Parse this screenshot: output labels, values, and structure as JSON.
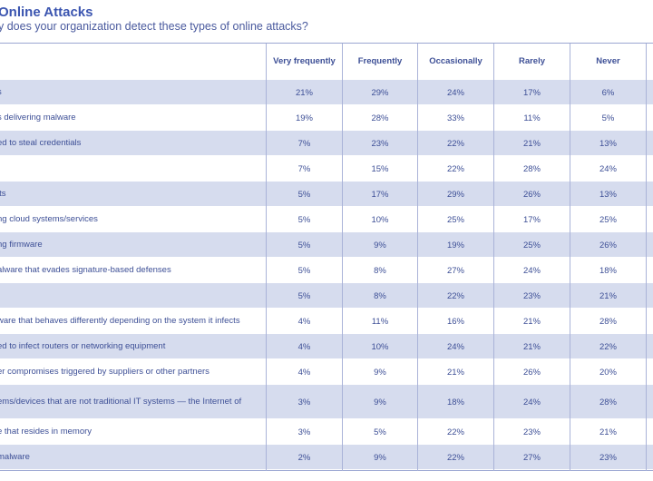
{
  "page": {
    "title": "Online Attacks",
    "subtitle": "y does your organization detect these types of online attacks?"
  },
  "table": {
    "columns": [
      "Very frequently",
      "Frequently",
      "Occasionally",
      "Rarely",
      "Never"
    ],
    "rows": [
      {
        "label": "s",
        "values": [
          "21%",
          "29%",
          "24%",
          "17%",
          "6%"
        ],
        "shaded": true
      },
      {
        "label": "s delivering malware",
        "values": [
          "19%",
          "28%",
          "33%",
          "11%",
          "5%"
        ],
        "shaded": false
      },
      {
        "label": "ed to steal credentials",
        "values": [
          "7%",
          "23%",
          "22%",
          "21%",
          "13%"
        ],
        "shaded": true
      },
      {
        "label": "",
        "values": [
          "7%",
          "15%",
          "22%",
          "28%",
          "24%"
        ],
        "shaded": false
      },
      {
        "label": "its",
        "values": [
          "5%",
          "17%",
          "29%",
          "26%",
          "13%"
        ],
        "shaded": true
      },
      {
        "label": "ng cloud systems/services",
        "values": [
          "5%",
          "10%",
          "25%",
          "17%",
          "25%"
        ],
        "shaded": false
      },
      {
        "label": "ng firmware",
        "values": [
          "5%",
          "9%",
          "19%",
          "25%",
          "26%"
        ],
        "shaded": true
      },
      {
        "label": "alware that evades signature-based defenses",
        "values": [
          "5%",
          "8%",
          "27%",
          "24%",
          "18%"
        ],
        "shaded": false
      },
      {
        "label": "",
        "values": [
          "5%",
          "8%",
          "22%",
          "23%",
          "21%"
        ],
        "shaded": true
      },
      {
        "label": "ware that behaves differently depending on the system it infects",
        "values": [
          "4%",
          "11%",
          "16%",
          "21%",
          "28%"
        ],
        "shaded": false
      },
      {
        "label": "ed to infect routers or networking equipment",
        "values": [
          "4%",
          "10%",
          "24%",
          "21%",
          "22%"
        ],
        "shaded": true
      },
      {
        "label": "er compromises triggered by suppliers or other partners",
        "values": [
          "4%",
          "9%",
          "21%",
          "26%",
          "20%"
        ],
        "shaded": false
      },
      {
        "label": "ems/devices that are not traditional IT systems — the Internet of",
        "values": [
          "3%",
          "9%",
          "18%",
          "24%",
          "28%"
        ],
        "shaded": true
      },
      {
        "label": "e that resides in memory",
        "values": [
          "3%",
          "5%",
          "22%",
          "23%",
          "21%"
        ],
        "shaded": false
      },
      {
        "label": "malware",
        "values": [
          "2%",
          "9%",
          "22%",
          "27%",
          "23%"
        ],
        "shaded": true
      }
    ]
  }
}
